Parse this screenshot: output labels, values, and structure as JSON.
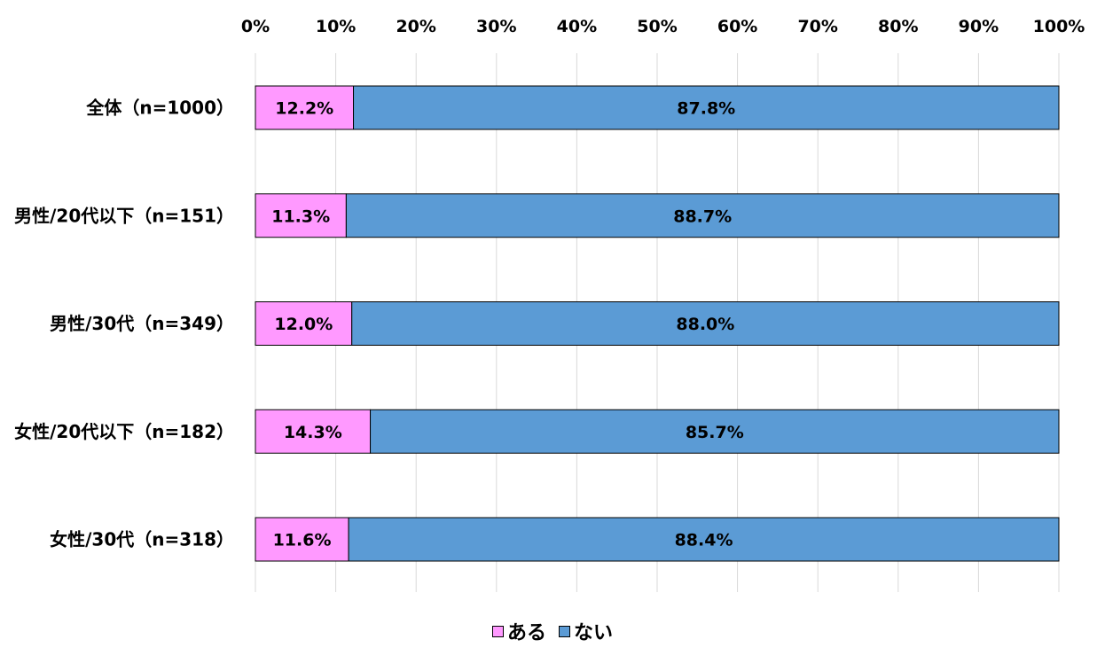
{
  "chart_data": {
    "type": "bar",
    "orientation": "horizontal",
    "stacked": true,
    "categories": [
      "全体（n=1000）",
      "男性/20代以下（n=151）",
      "男性/30代（n=349）",
      "女性/20代以下（n=182）",
      "女性/30代（n=318）"
    ],
    "series": [
      {
        "name": "ある",
        "color": "#ff99ff",
        "values": [
          12.2,
          11.3,
          12.0,
          14.3,
          11.6
        ],
        "labels": [
          "12.2%",
          "11.3%",
          "12.0%",
          "14.3%",
          "11.6%"
        ]
      },
      {
        "name": "ない",
        "color": "#5b9bd5",
        "values": [
          87.8,
          88.7,
          88.0,
          85.7,
          88.4
        ],
        "labels": [
          "87.8%",
          "88.7%",
          "88.0%",
          "85.7%",
          "88.4%"
        ]
      }
    ],
    "x_axis": {
      "range": [
        0,
        100
      ],
      "ticks": [
        "0%",
        "10%",
        "20%",
        "30%",
        "40%",
        "50%",
        "60%",
        "70%",
        "80%",
        "90%",
        "100%"
      ],
      "position": "top",
      "grid": true
    },
    "legend": {
      "position": "bottom",
      "entries": [
        "ある",
        "ない"
      ]
    }
  }
}
